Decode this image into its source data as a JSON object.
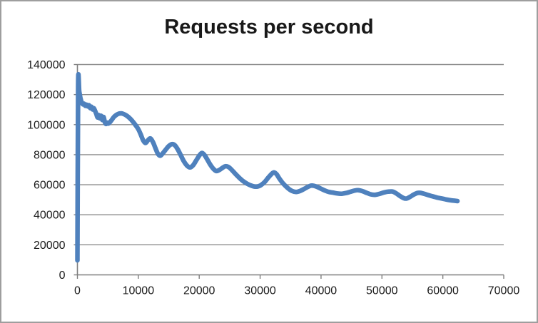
{
  "chart_data": {
    "type": "line",
    "title": "Requests per second",
    "xlabel": "",
    "ylabel": "",
    "xlim": [
      0,
      70000
    ],
    "ylim": [
      0,
      140000
    ],
    "x_ticks": [
      0,
      10000,
      20000,
      30000,
      40000,
      50000,
      60000,
      70000
    ],
    "x_tick_labels": [
      "0",
      "10000",
      "20000",
      "30000",
      "40000",
      "50000",
      "60000",
      "70000"
    ],
    "y_ticks": [
      0,
      20000,
      40000,
      60000,
      80000,
      100000,
      120000,
      140000
    ],
    "y_tick_labels": [
      "0",
      "20000",
      "40000",
      "60000",
      "80000",
      "100000",
      "120000",
      "140000"
    ],
    "grid": "horizontal-only",
    "legend": "none",
    "series": [
      {
        "name": "Requests per second",
        "color": "#4F81BD",
        "points": [
          [
            0,
            9700
          ],
          [
            120,
            125800
          ],
          [
            300,
            122000
          ],
          [
            500,
            117500
          ],
          [
            700,
            114800
          ],
          [
            900,
            113500
          ],
          [
            1100,
            113900
          ],
          [
            1300,
            112500
          ],
          [
            1500,
            113300
          ],
          [
            1700,
            112100
          ],
          [
            1900,
            112900
          ],
          [
            2100,
            111000
          ],
          [
            2300,
            111900
          ],
          [
            2500,
            110100
          ],
          [
            2700,
            110900
          ],
          [
            2900,
            109100
          ],
          [
            3100,
            107100
          ],
          [
            3300,
            104800
          ],
          [
            3500,
            106300
          ],
          [
            3700,
            104100
          ],
          [
            3900,
            105900
          ],
          [
            4100,
            103100
          ],
          [
            4300,
            105100
          ],
          [
            4500,
            101600
          ],
          [
            4700,
            100400
          ],
          [
            4900,
            101300
          ],
          [
            5100,
            100700
          ],
          [
            5400,
            101900
          ],
          [
            5700,
            103500
          ],
          [
            6000,
            105100
          ],
          [
            6400,
            106500
          ],
          [
            6800,
            107300
          ],
          [
            7200,
            107500
          ],
          [
            7600,
            107000
          ],
          [
            8000,
            106200
          ],
          [
            8400,
            105000
          ],
          [
            8800,
            103400
          ],
          [
            9200,
            101500
          ],
          [
            9600,
            99400
          ],
          [
            10000,
            96900
          ],
          [
            10400,
            93400
          ],
          [
            10800,
            89500
          ],
          [
            11200,
            87800
          ],
          [
            11600,
            89700
          ],
          [
            12000,
            90800
          ],
          [
            12400,
            88400
          ],
          [
            12800,
            84400
          ],
          [
            13200,
            80700
          ],
          [
            13600,
            79300
          ],
          [
            14000,
            80800
          ],
          [
            14500,
            83400
          ],
          [
            15000,
            85700
          ],
          [
            15500,
            87000
          ],
          [
            16000,
            86300
          ],
          [
            16500,
            83400
          ],
          [
            17000,
            79400
          ],
          [
            17500,
            75400
          ],
          [
            18000,
            72700
          ],
          [
            18500,
            71500
          ],
          [
            19000,
            73000
          ],
          [
            19500,
            76100
          ],
          [
            20000,
            79300
          ],
          [
            20400,
            81100
          ],
          [
            20800,
            80100
          ],
          [
            21300,
            77000
          ],
          [
            21800,
            73400
          ],
          [
            22300,
            70700
          ],
          [
            22800,
            69100
          ],
          [
            23300,
            69800
          ],
          [
            23800,
            71200
          ],
          [
            24300,
            72300
          ],
          [
            24800,
            71800
          ],
          [
            25300,
            70000
          ],
          [
            25900,
            67400
          ],
          [
            26500,
            64900
          ],
          [
            27200,
            62400
          ],
          [
            27900,
            60600
          ],
          [
            28600,
            59300
          ],
          [
            29300,
            58700
          ],
          [
            30000,
            59400
          ],
          [
            30700,
            61600
          ],
          [
            31300,
            64600
          ],
          [
            31900,
            67300
          ],
          [
            32300,
            68200
          ],
          [
            32700,
            67000
          ],
          [
            33200,
            63900
          ],
          [
            33800,
            60700
          ],
          [
            34500,
            57900
          ],
          [
            35200,
            55900
          ],
          [
            35900,
            55200
          ],
          [
            36600,
            55900
          ],
          [
            37300,
            57400
          ],
          [
            38000,
            58900
          ],
          [
            38500,
            59400
          ],
          [
            39200,
            58800
          ],
          [
            39900,
            57500
          ],
          [
            40600,
            56200
          ],
          [
            41300,
            55200
          ],
          [
            42000,
            54700
          ],
          [
            42700,
            54200
          ],
          [
            43400,
            54000
          ],
          [
            44100,
            54500
          ],
          [
            44800,
            55300
          ],
          [
            45500,
            56100
          ],
          [
            46100,
            56400
          ],
          [
            46800,
            55700
          ],
          [
            47500,
            54600
          ],
          [
            48200,
            53600
          ],
          [
            48900,
            53300
          ],
          [
            49600,
            53900
          ],
          [
            50300,
            54800
          ],
          [
            51000,
            55400
          ],
          [
            51700,
            55500
          ],
          [
            52300,
            54400
          ],
          [
            52900,
            52700
          ],
          [
            53500,
            51200
          ],
          [
            54000,
            50800
          ],
          [
            54600,
            51900
          ],
          [
            55200,
            53400
          ],
          [
            55800,
            54500
          ],
          [
            56300,
            54600
          ],
          [
            56900,
            54000
          ],
          [
            57600,
            53100
          ],
          [
            58300,
            52300
          ],
          [
            59000,
            51500
          ],
          [
            59700,
            50900
          ],
          [
            60400,
            50300
          ],
          [
            61100,
            49800
          ],
          [
            61800,
            49400
          ],
          [
            62400,
            49100
          ]
        ]
      }
    ]
  },
  "styles": {
    "series_color": "#4F81BD",
    "gridline_color": "#8c8c8c",
    "axis_color": "#7f7f7f",
    "text_color": "#1a1a1a",
    "border_color": "#9e9e9e",
    "background": "#ffffff"
  }
}
